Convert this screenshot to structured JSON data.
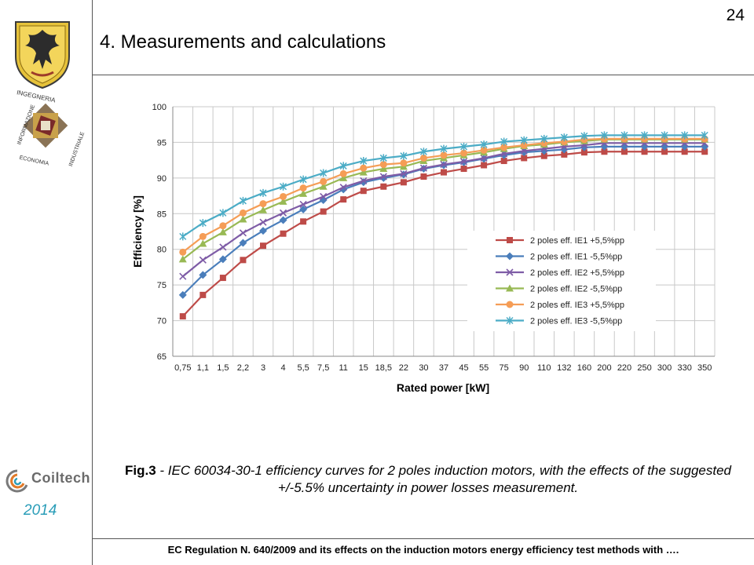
{
  "slide": {
    "page_number": "24",
    "title": "4. Measurements and calculations",
    "year": "2014",
    "coiltech_brand": "Coiltech",
    "ing_logo_words": [
      "INGEGNERIA",
      "INDUSTRIALE",
      "INFORMAZIONE",
      "ECONOMIA"
    ],
    "caption_fig": "Fig.3",
    "caption_text": " - IEC 60034-30-1 efficiency curves for 2 poles induction motors, with the effects of the suggested +/-5.5% uncertainty in power losses measurement.",
    "footer": "EC Regulation  N. 640/2009 and its effects on the induction motors energy efficiency test methods with …."
  },
  "colors": {
    "year": "#2a9db8",
    "rule": "#555555"
  },
  "chart_data": {
    "type": "line",
    "xlabel": "Rated power [kW]",
    "ylabel": "Efficiency [%]",
    "ylim": [
      65,
      100
    ],
    "yticks": [
      65,
      70,
      75,
      80,
      85,
      90,
      95,
      100
    ],
    "grid": true,
    "legend": "center-right",
    "categories": [
      "0,75",
      "1,1",
      "1,5",
      "2,2",
      "3",
      "4",
      "5,5",
      "7,5",
      "11",
      "15",
      "18,5",
      "22",
      "30",
      "37",
      "45",
      "55",
      "75",
      "90",
      "110",
      "132",
      "160",
      "200",
      "220",
      "250",
      "300",
      "330",
      "350"
    ],
    "series": [
      {
        "name": "2 poles eff. IE1 +5,5%pp",
        "color": "#be4b48",
        "marker": "square",
        "values": [
          70.6,
          73.6,
          76.0,
          78.5,
          80.5,
          82.2,
          83.9,
          85.3,
          87.0,
          88.2,
          88.8,
          89.4,
          90.2,
          90.8,
          91.3,
          91.8,
          92.4,
          92.8,
          93.1,
          93.3,
          93.6,
          93.7,
          93.7,
          93.7,
          93.7,
          93.7,
          93.7
        ]
      },
      {
        "name": "2 poles eff. IE1 -5,5%pp",
        "color": "#4a7ebb",
        "marker": "diamond",
        "values": [
          73.6,
          76.4,
          78.6,
          80.9,
          82.6,
          84.1,
          85.6,
          86.9,
          88.4,
          89.4,
          90.0,
          90.5,
          91.3,
          91.8,
          92.2,
          92.7,
          93.2,
          93.6,
          93.8,
          94.0,
          94.3,
          94.4,
          94.4,
          94.4,
          94.4,
          94.4,
          94.4
        ]
      },
      {
        "name": "2 poles eff. IE2 +5,5%pp",
        "color": "#7e5ca6",
        "marker": "x",
        "values": [
          76.2,
          78.5,
          80.3,
          82.3,
          83.8,
          85.1,
          86.3,
          87.4,
          88.7,
          89.6,
          90.2,
          90.6,
          91.4,
          91.9,
          92.3,
          92.8,
          93.4,
          93.8,
          94.1,
          94.4,
          94.6,
          94.9,
          94.9,
          94.9,
          94.9,
          94.9,
          94.9
        ]
      },
      {
        "name": "2 poles eff. IE2 -5,5%pp",
        "color": "#98b954",
        "marker": "triangle",
        "values": [
          78.6,
          80.8,
          82.4,
          84.2,
          85.5,
          86.7,
          87.8,
          88.8,
          90.0,
          90.8,
          91.3,
          91.6,
          92.4,
          92.8,
          93.2,
          93.6,
          94.1,
          94.5,
          94.7,
          95.0,
          95.2,
          95.4,
          95.4,
          95.4,
          95.4,
          95.4,
          95.4
        ]
      },
      {
        "name": "2 poles eff. IE3 +5,5%pp",
        "color": "#f59d56",
        "marker": "circle",
        "values": [
          79.6,
          81.8,
          83.3,
          85.1,
          86.4,
          87.4,
          88.6,
          89.5,
          90.6,
          91.4,
          91.9,
          92.1,
          92.8,
          93.2,
          93.5,
          93.9,
          94.3,
          94.6,
          94.9,
          95.1,
          95.4,
          95.5,
          95.5,
          95.5,
          95.5,
          95.5,
          95.5
        ]
      },
      {
        "name": "2 poles eff. IE3 -5,5%pp",
        "color": "#4bacc6",
        "marker": "star",
        "values": [
          81.8,
          83.7,
          85.1,
          86.8,
          87.9,
          88.8,
          89.8,
          90.7,
          91.7,
          92.4,
          92.8,
          93.1,
          93.7,
          94.1,
          94.4,
          94.7,
          95.1,
          95.3,
          95.5,
          95.7,
          95.9,
          96.0,
          96.0,
          96.0,
          96.0,
          96.0,
          96.0
        ]
      }
    ]
  }
}
